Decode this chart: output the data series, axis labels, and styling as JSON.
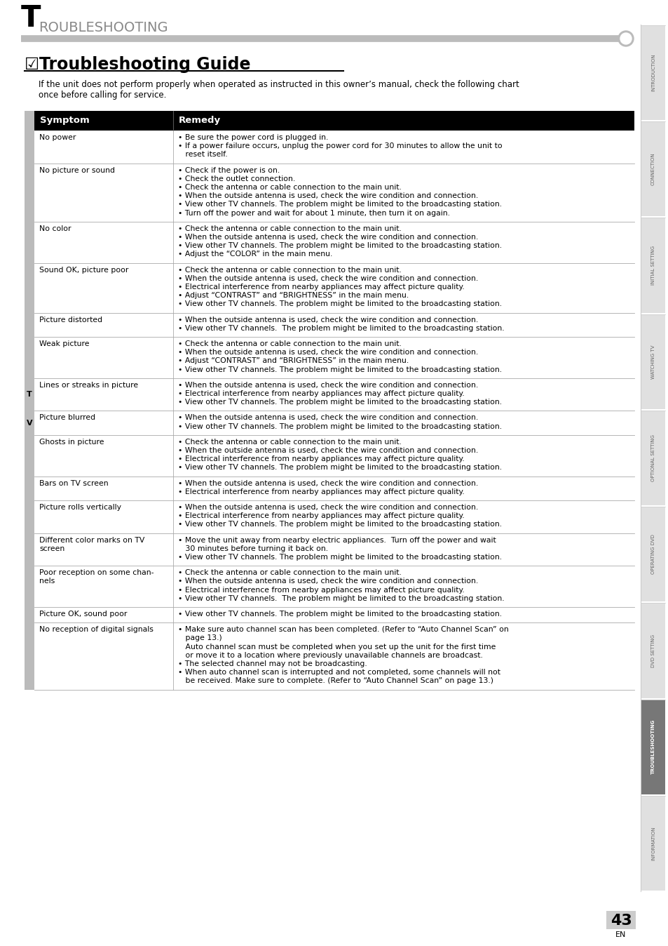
{
  "page_title": "TROUBLESHOOTING",
  "section_title": "Troubleshooting Guide",
  "intro_text": "If the unit does not perform properly when operated as instructed in this owner’s manual, check the following chart\nonce before calling for service.",
  "table_headers": [
    "Symptom",
    "Remedy"
  ],
  "table_rows": [
    {
      "symptom": "No power",
      "remedy": "• Be sure the power cord is plugged in.\n• If a power failure occurs, unplug the power cord for 30 minutes to allow the unit to\n   reset itself."
    },
    {
      "symptom": "No picture or sound",
      "remedy": "• Check if the power is on.\n• Check the outlet connection.\n• Check the antenna or cable connection to the main unit.\n• When the outside antenna is used, check the wire condition and connection.\n• View other TV channels. The problem might be limited to the broadcasting station.\n• Turn off the power and wait for about 1 minute, then turn it on again."
    },
    {
      "symptom": "No color",
      "remedy": "• Check the antenna or cable connection to the main unit.\n• When the outside antenna is used, check the wire condition and connection.\n• View other TV channels. The problem might be limited to the broadcasting station.\n• Adjust the “COLOR” in the main menu."
    },
    {
      "symptom": "Sound OK, picture poor",
      "remedy": "• Check the antenna or cable connection to the main unit.\n• When the outside antenna is used, check the wire condition and connection.\n• Electrical interference from nearby appliances may affect picture quality.\n• Adjust “CONTRAST” and “BRIGHTNESS” in the main menu.\n• View other TV channels. The problem might be limited to the broadcasting station."
    },
    {
      "symptom": "Picture distorted",
      "remedy": "• When the outside antenna is used, check the wire condition and connection.\n• View other TV channels.  The problem might be limited to the broadcasting station."
    },
    {
      "symptom": "Weak picture",
      "remedy": "• Check the antenna or cable connection to the main unit.\n• When the outside antenna is used, check the wire condition and connection.\n• Adjust “CONTRAST” and “BRIGHTNESS” in the main menu.\n• View other TV channels. The problem might be limited to the broadcasting station."
    },
    {
      "symptom": "Lines or streaks in picture",
      "remedy": "• When the outside antenna is used, check the wire condition and connection.\n• Electrical interference from nearby appliances may affect picture quality.\n• View other TV channels. The problem might be limited to the broadcasting station."
    },
    {
      "symptom": "Picture blurred",
      "remedy": "• When the outside antenna is used, check the wire condition and connection.\n• View other TV channels. The problem might be limited to the broadcasting station."
    },
    {
      "symptom": "Ghosts in picture",
      "remedy": "• Check the antenna or cable connection to the main unit.\n• When the outside antenna is used, check the wire condition and connection.\n• Electrical interference from nearby appliances may affect picture quality.\n• View other TV channels. The problem might be limited to the broadcasting station."
    },
    {
      "symptom": "Bars on TV screen",
      "remedy": "• When the outside antenna is used, check the wire condition and connection.\n• Electrical interference from nearby appliances may affect picture quality."
    },
    {
      "symptom": "Picture rolls vertically",
      "remedy": "• When the outside antenna is used, check the wire condition and connection.\n• Electrical interference from nearby appliances may affect picture quality.\n• View other TV channels. The problem might be limited to the broadcasting station."
    },
    {
      "symptom": "Different color marks on TV\nscreen",
      "remedy": "• Move the unit away from nearby electric appliances.  Turn off the power and wait\n   30 minutes before turning it back on.\n• View other TV channels. The problem might be limited to the broadcasting station."
    },
    {
      "symptom": "Poor reception on some chan-\nnels",
      "remedy": "• Check the antenna or cable connection to the main unit.\n• When the outside antenna is used, check the wire condition and connection.\n• Electrical interference from nearby appliances may affect picture quality.\n• View other TV channels.  The problem might be limited to the broadcasting station."
    },
    {
      "symptom": "Picture OK, sound poor",
      "remedy": "• View other TV channels. The problem might be limited to the broadcasting station."
    },
    {
      "symptom": "No reception of digital signals",
      "remedy": "• Make sure auto channel scan has been completed. (Refer to “Auto Channel Scan” on\n   page 13.)\n   Auto channel scan must be completed when you set up the unit for the first time\n   or move it to a location where previously unavailable channels are broadcast.\n• The selected channel may not be broadcasting.\n• When auto channel scan is interrupted and not completed, some channels will not\n   be received. Make sure to complete. (Refer to “Auto Channel Scan” on page 13.)"
    }
  ],
  "sidebar_labels": [
    "INTRODUCTION",
    "CONNECTION",
    "INITIAL SETTING",
    "WATCHING TV",
    "OPTIONAL SETTING",
    "OPERATING DVD",
    "DVD SETTING",
    "TROUBLESHOOTING",
    "INFORMATION"
  ],
  "page_number": "43",
  "header_bg": "#000000",
  "header_fg": "#ffffff",
  "border_color": "#aaaaaa",
  "sidebar_active_bg": "#777777",
  "sidebar_inactive_bg": "#e0e0e0",
  "sidebar_active_idx": 7,
  "gray_bar_color": "#bbbbbb",
  "line_color": "#aaaaaa"
}
